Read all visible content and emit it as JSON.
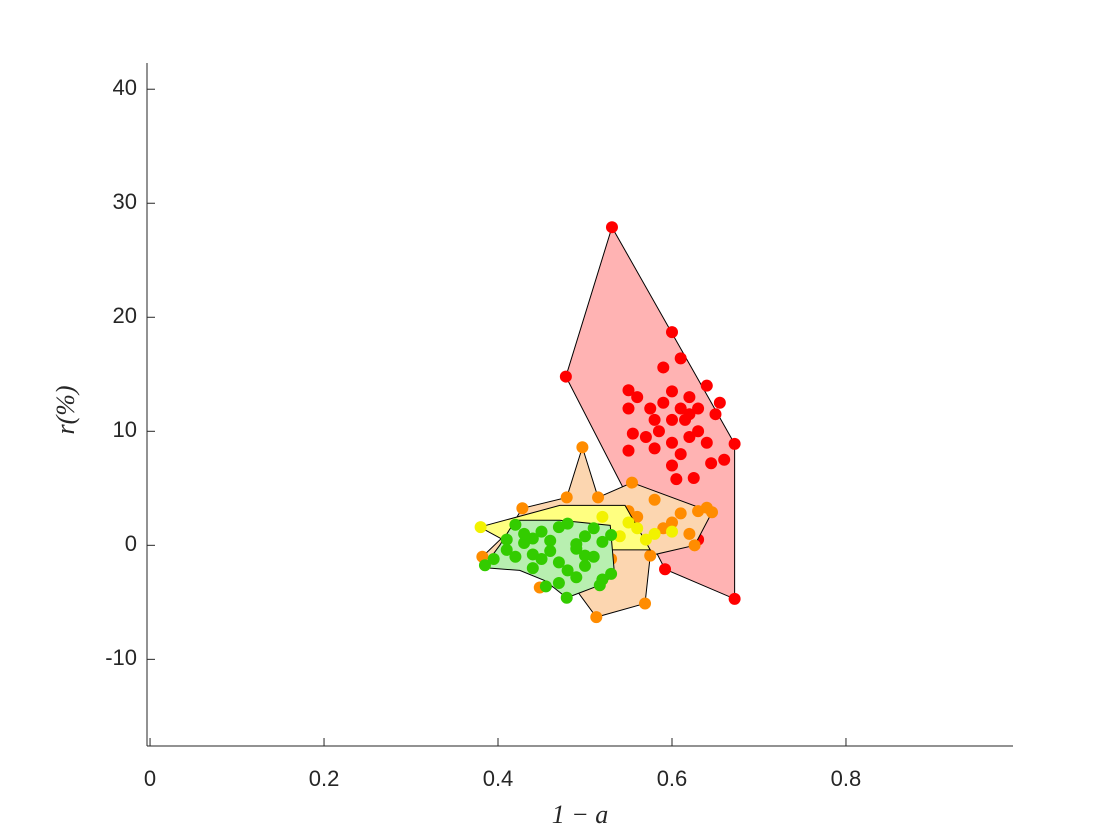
{
  "chart_data": {
    "type": "scatter",
    "xlabel": "1 − a",
    "ylabel": "r(%)",
    "xlim": [
      -0.0035,
      0.992
    ],
    "ylim": [
      -17.6,
      42.3
    ],
    "xticks": [
      0,
      0.2,
      0.4,
      0.6,
      0.8
    ],
    "yticks": [
      -10,
      0,
      10,
      20,
      30,
      40
    ],
    "grid": false,
    "series": [
      {
        "color": "#ff0000",
        "fill_color": "#ffb3b3",
        "x": [
          0.531,
          0.6,
          0.61,
          0.64,
          0.59,
          0.478,
          0.672,
          0.672,
          0.592,
          0.55,
          0.56,
          0.575,
          0.55,
          0.58,
          0.59,
          0.6,
          0.61,
          0.62,
          0.63,
          0.65,
          0.655,
          0.6,
          0.6,
          0.58,
          0.57,
          0.61,
          0.62,
          0.64,
          0.66,
          0.645,
          0.6,
          0.605,
          0.625,
          0.555,
          0.55,
          0.585,
          0.62,
          0.63,
          0.615,
          0.625,
          0.63
        ],
        "y": [
          27.9,
          18.7,
          16.4,
          14,
          15.6,
          14.8,
          8.9,
          -4.7,
          -2.1,
          13.6,
          13,
          12,
          12,
          11,
          12.5,
          11,
          12,
          11.5,
          10,
          11.5,
          12.5,
          13.5,
          9,
          8.5,
          9.5,
          8,
          9.5,
          9,
          7.5,
          7.2,
          7,
          5.8,
          5.9,
          9.8,
          8.3,
          10,
          13,
          12,
          11,
          1.7,
          0.5
        ],
        "hull_x": [
          0.531,
          0.672,
          0.672,
          0.592,
          0.478
        ],
        "hull_y": [
          27.9,
          8.9,
          -4.7,
          -2.1,
          14.8
        ]
      },
      {
        "color": "#ff8c00",
        "fill_color": "#fcd6b0",
        "x": [
          0.382,
          0.41,
          0.428,
          0.479,
          0.497,
          0.515,
          0.554,
          0.646,
          0.626,
          0.575,
          0.569,
          0.513,
          0.486,
          0.448,
          0.462,
          0.414,
          0.45,
          0.5,
          0.55,
          0.6,
          0.62,
          0.63,
          0.64,
          0.58,
          0.47,
          0.52,
          0.53,
          0.43,
          0.56,
          0.61,
          0.59
        ],
        "y": [
          -1,
          1.05,
          3.25,
          4.2,
          8.6,
          4.2,
          5.5,
          2.9,
          0,
          -0.9,
          -5.1,
          -6.3,
          -3.5,
          -3.7,
          -2.2,
          -1.3,
          1,
          2,
          3,
          2,
          1,
          3,
          3.3,
          4,
          -1,
          0.5,
          -1.2,
          1.5,
          2.5,
          2.8,
          1.5
        ],
        "hull_x": [
          0.382,
          0.41,
          0.428,
          0.479,
          0.497,
          0.515,
          0.554,
          0.646,
          0.626,
          0.575,
          0.569,
          0.513,
          0.486,
          0.448,
          0.462,
          0.414
        ],
        "hull_y": [
          -1,
          1.05,
          3.25,
          4.2,
          8.6,
          4.2,
          5.5,
          2.9,
          0,
          -0.9,
          -5.1,
          -6.3,
          -3.5,
          -3.7,
          -2.2,
          -1.3
        ]
      },
      {
        "color": "#f2f200",
        "fill_color": "#ffff80",
        "x": [
          0.38,
          0.55,
          0.56,
          0.57,
          0.54,
          0.5,
          0.52,
          0.58,
          0.47,
          0.6
        ],
        "y": [
          1.6,
          2,
          1.5,
          0.5,
          0.8,
          1,
          2.5,
          1,
          0.5,
          1.2
        ],
        "hull_x": [
          0.379,
          0.471,
          0.546,
          0.575,
          0.529,
          0.425
        ],
        "hull_y": [
          1.6,
          3.5,
          3.5,
          -0.4,
          -0.4,
          -0.3
        ]
      },
      {
        "color": "#33cc00",
        "fill_color": "#b8efb0",
        "x": [
          0.385,
          0.395,
          0.41,
          0.42,
          0.43,
          0.44,
          0.45,
          0.46,
          0.47,
          0.48,
          0.49,
          0.5,
          0.51,
          0.52,
          0.53,
          0.42,
          0.44,
          0.46,
          0.48,
          0.5,
          0.52,
          0.43,
          0.45,
          0.47,
          0.49,
          0.51,
          0.479,
          0.517,
          0.455,
          0.44,
          0.5,
          0.41,
          0.53,
          0.47,
          0.49
        ],
        "y": [
          -1.75,
          -1.2,
          0.5,
          1.8,
          0.2,
          -0.8,
          1.2,
          0.4,
          -1.5,
          1.9,
          -0.3,
          0.8,
          -1,
          0.3,
          -2.5,
          -1,
          -2,
          -0.5,
          -2.2,
          -1.8,
          -3,
          1,
          -1.2,
          -3.3,
          -2.8,
          1.5,
          -4.6,
          -3.5,
          -3.6,
          0.6,
          -0.9,
          -0.4,
          0.9,
          1.6,
          0.1
        ],
        "hull_x": [
          0.385,
          0.402,
          0.42,
          0.471,
          0.529,
          0.534,
          0.517,
          0.479,
          0.454,
          0.425,
          0.391
        ],
        "hull_y": [
          -1.75,
          0,
          2.2,
          2.2,
          1.75,
          -2.6,
          -3.5,
          -4.6,
          -3.1,
          -2.2,
          -2.0
        ]
      }
    ]
  }
}
